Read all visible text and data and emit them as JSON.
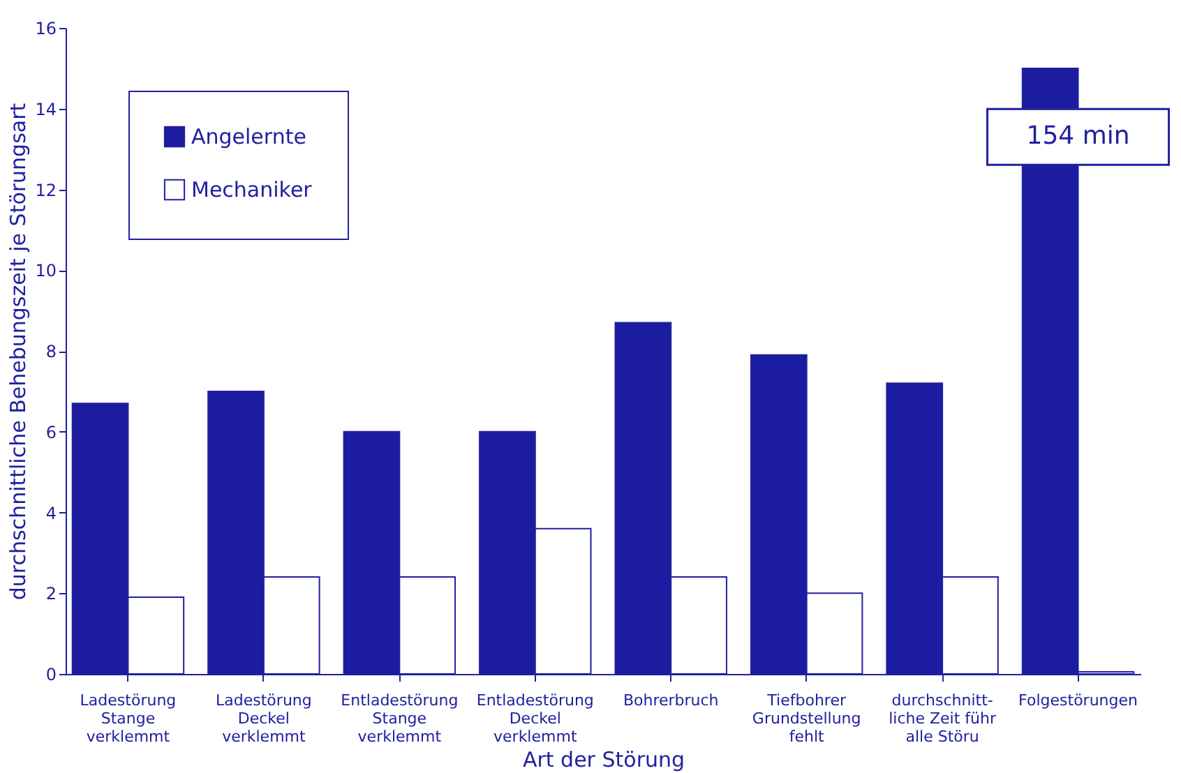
{
  "chart_data": {
    "type": "bar",
    "xlabel": "Art der Störung",
    "ylabel": "durchschnittliche Behebungszeit je Störungsart",
    "categories": [
      "Ladestörung\nStange\nverklemmt",
      "Ladestörung\nDeckel\nverklemmt",
      "Entladestörung\nStange\nverklemmt",
      "Entladestörung\nDeckel\nverklemmt",
      "Bohrerbruch",
      "Tiefbohrer\nGrundstellung\nfehlt",
      "durchschnitt-\nliche Zeit führ\nalle Störu",
      "Folgestörungen"
    ],
    "series": [
      {
        "name": "Angelernte",
        "color": "#1c1ca0",
        "values": [
          6.7,
          7.0,
          6.0,
          6.0,
          8.7,
          7.9,
          7.2,
          15.0
        ]
      },
      {
        "name": "Mechaniker",
        "color": "#ffffff",
        "values": [
          1.9,
          2.4,
          2.4,
          3.6,
          2.4,
          2.0,
          2.4,
          0.05
        ]
      }
    ],
    "ylim": [
      0,
      16
    ],
    "yticks": [
      0,
      2,
      4,
      6,
      8,
      10,
      12,
      14,
      16
    ],
    "grid": false,
    "legend": "top left",
    "annotations": [
      {
        "text": "154 min",
        "x": "Folgestörungen",
        "y": 13.3
      }
    ]
  }
}
